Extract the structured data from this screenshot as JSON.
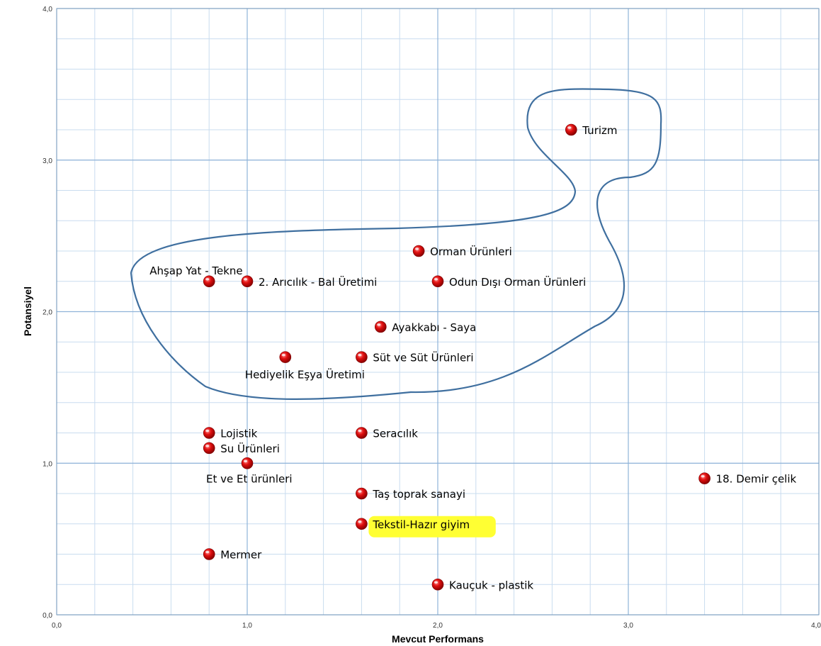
{
  "chart_data": {
    "type": "scatter",
    "title": "",
    "xlabel": "Mevcut Performans",
    "ylabel": "Potansiyel",
    "xlim": [
      0,
      4
    ],
    "ylim": [
      0,
      4
    ],
    "xticks": [
      "0,0",
      "1,0",
      "2,0",
      "3,0",
      "4,0"
    ],
    "yticks": [
      "0,0",
      "1,0",
      "2,0",
      "3,0",
      "4,0"
    ],
    "grid": true,
    "highlighted": "Tekstil-Hazır giyim",
    "colors": {
      "point": "#e01010",
      "grid_major": "#8fb3d9",
      "grid_minor": "#c9dcef",
      "outline": "#3f6f9f",
      "highlight": "#ffff33"
    },
    "points": [
      {
        "label": "Turizm",
        "x": 2.7,
        "y": 3.2
      },
      {
        "label": "Orman Ürünleri",
        "x": 1.9,
        "y": 2.4
      },
      {
        "label": "Ahşap Yat - Tekne",
        "x": 0.8,
        "y": 2.2
      },
      {
        "label": "2. Arıcılık - Bal Üretimi",
        "x": 1.0,
        "y": 2.2
      },
      {
        "label": "Odun Dışı Orman Ürünleri",
        "x": 2.0,
        "y": 2.2
      },
      {
        "label": "Ayakkabı - Saya",
        "x": 1.7,
        "y": 1.9
      },
      {
        "label": "Hediyelik Eşya Üretimi",
        "x": 1.2,
        "y": 1.7
      },
      {
        "label": "Süt ve Süt Ürünleri",
        "x": 1.6,
        "y": 1.7
      },
      {
        "label": "Lojistik",
        "x": 0.8,
        "y": 1.2
      },
      {
        "label": "Seracılık",
        "x": 1.6,
        "y": 1.2
      },
      {
        "label": "Su Ürünleri",
        "x": 0.8,
        "y": 1.1
      },
      {
        "label": "Et ve Et ürünleri",
        "x": 1.0,
        "y": 1.0
      },
      {
        "label": "18. Demir çelik",
        "x": 3.4,
        "y": 0.9
      },
      {
        "label": "Taş toprak sanayi",
        "x": 1.6,
        "y": 0.8
      },
      {
        "label": "Tekstil-Hazır giyim",
        "x": 1.6,
        "y": 0.6
      },
      {
        "label": "Mermer",
        "x": 0.8,
        "y": 0.4
      },
      {
        "label": "Kauçuk - plastik",
        "x": 2.0,
        "y": 0.2
      }
    ]
  }
}
